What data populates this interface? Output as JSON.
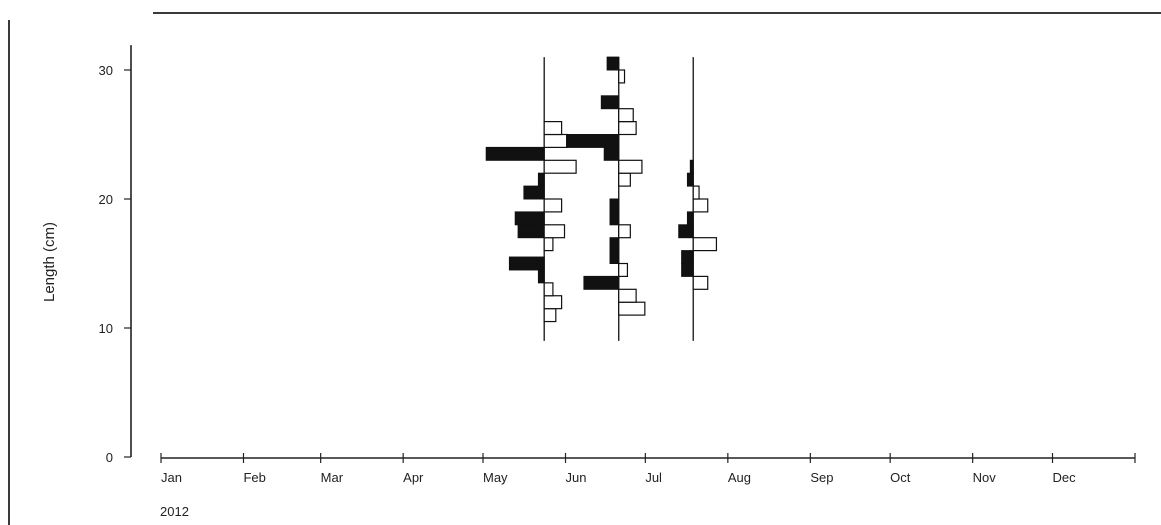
{
  "chart_data": {
    "type": "histogram-kite",
    "title": "",
    "ylabel": "Length (cm)",
    "xlabel": "",
    "year_label": "2012",
    "ylim": [
      0,
      31
    ],
    "y_ticks": [
      0,
      10,
      20,
      30
    ],
    "x_categories": [
      "Jan",
      "Feb",
      "Mar",
      "Apr",
      "May",
      "Jun",
      "Jul",
      "Aug",
      "Sep",
      "Oct",
      "Nov",
      "Dec"
    ],
    "groups": [
      {
        "date": "2012-05-24",
        "line_range": [
          9,
          31
        ],
        "bars": [
          {
            "y": 11,
            "filled": 0,
            "hollow": 4
          },
          {
            "y": 12,
            "filled": 0,
            "hollow": 6
          },
          {
            "y": 13,
            "filled": 0,
            "hollow": 3
          },
          {
            "y": 14,
            "filled": 2,
            "hollow": 0
          },
          {
            "y": 15,
            "filled": 12,
            "hollow": 0
          },
          {
            "y": 16.5,
            "filled": 0,
            "hollow": 3
          },
          {
            "y": 17.5,
            "filled": 9,
            "hollow": 7
          },
          {
            "y": 18.5,
            "filled": 10,
            "hollow": 0
          },
          {
            "y": 19.5,
            "filled": 0,
            "hollow": 6
          },
          {
            "y": 20.5,
            "filled": 7,
            "hollow": 0
          },
          {
            "y": 21.5,
            "filled": 2,
            "hollow": 0
          },
          {
            "y": 22.5,
            "filled": 0,
            "hollow": 11
          },
          {
            "y": 23.5,
            "filled": 20,
            "hollow": 0
          },
          {
            "y": 24.5,
            "filled": 0,
            "hollow": 8
          },
          {
            "y": 25.5,
            "filled": 0,
            "hollow": 6
          }
        ]
      },
      {
        "date": "2012-06-21",
        "line_range": [
          9,
          31
        ],
        "bars": [
          {
            "y": 11.5,
            "filled": 0,
            "hollow": 9
          },
          {
            "y": 12.5,
            "filled": 0,
            "hollow": 6
          },
          {
            "y": 13.5,
            "filled": 12,
            "hollow": 0
          },
          {
            "y": 14.5,
            "filled": 0,
            "hollow": 3
          },
          {
            "y": 15.5,
            "filled": 3,
            "hollow": 0
          },
          {
            "y": 16.5,
            "filled": 3,
            "hollow": 0
          },
          {
            "y": 17.5,
            "filled": 0,
            "hollow": 4
          },
          {
            "y": 18.5,
            "filled": 3,
            "hollow": 0
          },
          {
            "y": 19.5,
            "filled": 3,
            "hollow": 0
          },
          {
            "y": 21.5,
            "filled": 0,
            "hollow": 4
          },
          {
            "y": 22.5,
            "filled": 0,
            "hollow": 8
          },
          {
            "y": 23.5,
            "filled": 5,
            "hollow": 0
          },
          {
            "y": 24.5,
            "filled": 18,
            "hollow": 0
          },
          {
            "y": 25.5,
            "filled": 0,
            "hollow": 6
          },
          {
            "y": 26.5,
            "filled": 0,
            "hollow": 5
          },
          {
            "y": 27.5,
            "filled": 6,
            "hollow": 0
          },
          {
            "y": 29.5,
            "filled": 0,
            "hollow": 2
          },
          {
            "y": 30.5,
            "filled": 4,
            "hollow": 0
          }
        ]
      },
      {
        "date": "2012-07-19",
        "line_range": [
          9,
          31
        ],
        "bars": [
          {
            "y": 13.5,
            "filled": 0,
            "hollow": 5
          },
          {
            "y": 14.5,
            "filled": 4,
            "hollow": 0
          },
          {
            "y": 15.5,
            "filled": 4,
            "hollow": 0
          },
          {
            "y": 16.5,
            "filled": 0,
            "hollow": 8
          },
          {
            "y": 17.5,
            "filled": 5,
            "hollow": 0
          },
          {
            "y": 18.5,
            "filled": 2,
            "hollow": 0
          },
          {
            "y": 19.5,
            "filled": 0,
            "hollow": 5
          },
          {
            "y": 20.5,
            "filled": 0,
            "hollow": 2
          },
          {
            "y": 21.5,
            "filled": 2,
            "hollow": 0
          },
          {
            "y": 22.5,
            "filled": 1,
            "hollow": 0
          }
        ]
      }
    ]
  }
}
